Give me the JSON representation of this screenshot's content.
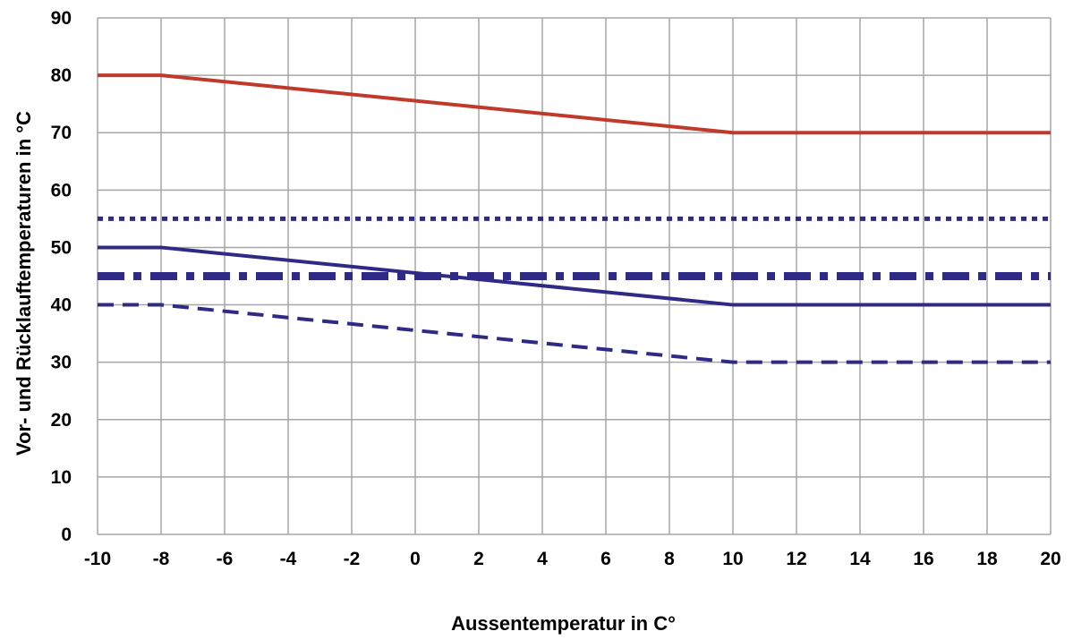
{
  "chart_data": {
    "type": "line",
    "title": "",
    "xlabel": "Aussentemperatur in C°",
    "ylabel": "Vor- und Rücklauftemperaturen in °C",
    "xlim": [
      -10,
      20
    ],
    "ylim": [
      0,
      90
    ],
    "x_ticks": [
      -10,
      -8,
      -6,
      -4,
      -2,
      0,
      2,
      4,
      6,
      8,
      10,
      12,
      14,
      16,
      18,
      20
    ],
    "y_ticks": [
      0,
      10,
      20,
      30,
      40,
      50,
      60,
      70,
      80,
      90
    ],
    "grid": true,
    "legend": "none",
    "series": [
      {
        "style": "solid",
        "color": "#c0392b",
        "x": [
          -10,
          -8,
          10,
          20
        ],
        "y": [
          80,
          80,
          70,
          70
        ]
      },
      {
        "style": "dotted",
        "color": "#2e2a86",
        "x": [
          -10,
          20
        ],
        "y": [
          55,
          55
        ]
      },
      {
        "style": "dashdot",
        "color": "#2e2a86",
        "x": [
          -10,
          20
        ],
        "y": [
          45,
          45
        ]
      },
      {
        "style": "solid",
        "color": "#2e2a86",
        "x": [
          -10,
          -8,
          10,
          20
        ],
        "y": [
          50,
          50,
          40,
          40
        ]
      },
      {
        "style": "dashed",
        "color": "#2e2a86",
        "x": [
          -10,
          -8,
          10,
          20
        ],
        "y": [
          40,
          40,
          30,
          30
        ]
      }
    ]
  }
}
